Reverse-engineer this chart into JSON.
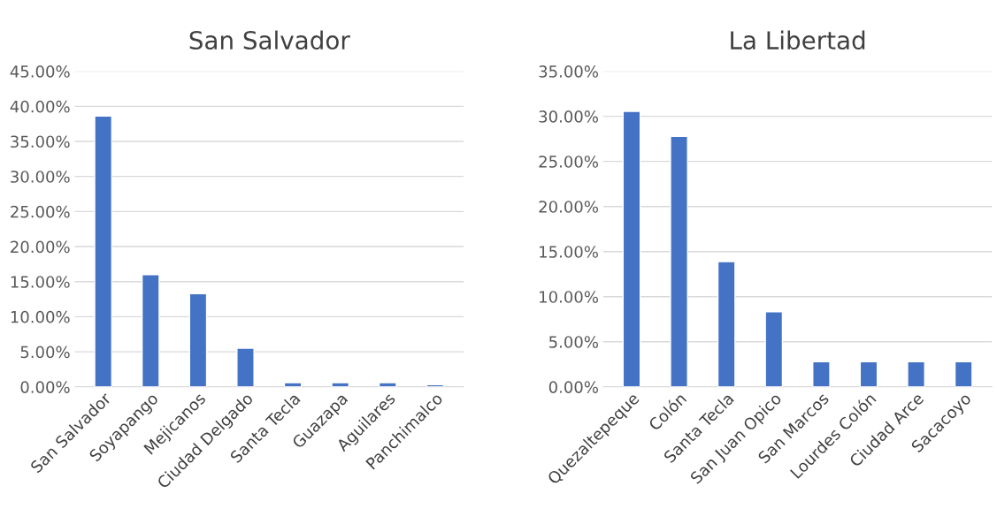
{
  "chart_data": [
    {
      "type": "bar",
      "title": "San Salvador",
      "categories": [
        "San Salvador",
        "Soyapango",
        "Mejicanos",
        "Ciudad Delgado",
        "Santa Tecla",
        "Guazapa",
        "Aguilares",
        "Panchimalco"
      ],
      "values": [
        38.6,
        16.0,
        13.3,
        5.5,
        0.6,
        0.6,
        0.6,
        0.3
      ],
      "color": "#4472c4",
      "ylim": [
        0,
        45
      ],
      "yticks": [
        {
          "value": 0,
          "label": "0.00%"
        },
        {
          "value": 5,
          "label": "5.00%"
        },
        {
          "value": 10,
          "label": "10.00%"
        },
        {
          "value": 15,
          "label": "15.00%"
        },
        {
          "value": 20,
          "label": "20.00%"
        },
        {
          "value": 25,
          "label": "25.00%"
        },
        {
          "value": 30,
          "label": "30.00%"
        },
        {
          "value": 35,
          "label": "35.00%"
        },
        {
          "value": 40,
          "label": "40.00%"
        },
        {
          "value": 45,
          "label": "45.00%"
        }
      ],
      "grid": "y"
    },
    {
      "type": "bar",
      "title": "La Libertad",
      "categories": [
        "Quezaltepeque",
        "Colón",
        "Santa Tecla",
        "San Juan Opico",
        "San Marcos",
        "Lourdes Colón",
        "Ciudad Arce",
        "Sacacoyo"
      ],
      "values": [
        30.56,
        27.78,
        13.89,
        8.33,
        2.78,
        2.78,
        2.78,
        2.78
      ],
      "color": "#4472c4",
      "ylim": [
        0,
        35
      ],
      "yticks": [
        {
          "value": 0,
          "label": "0.00%"
        },
        {
          "value": 5,
          "label": "5.00%"
        },
        {
          "value": 10,
          "label": "10.00%"
        },
        {
          "value": 15,
          "label": "15.00%"
        },
        {
          "value": 20,
          "label": "20.00%"
        },
        {
          "value": 25,
          "label": "25.00%"
        },
        {
          "value": 30,
          "label": "30.00%"
        },
        {
          "value": 35,
          "label": "35.00%"
        }
      ],
      "grid": "y"
    }
  ]
}
